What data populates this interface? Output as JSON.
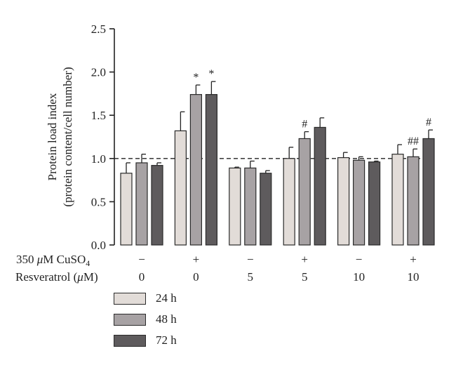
{
  "chart_data": {
    "type": "bar",
    "ylabel_line1": "Protein load index",
    "ylabel_line2": "(protein content/cell number)",
    "ylim": [
      0,
      2.5
    ],
    "yticks": [
      "0.0",
      "0.5",
      "1.0",
      "1.5",
      "2.0",
      "2.5"
    ],
    "reference_line": 1.0,
    "groups": [
      {
        "cuso4": "−",
        "resveratrol": "0"
      },
      {
        "cuso4": "+",
        "resveratrol": "0"
      },
      {
        "cuso4": "−",
        "resveratrol": "5"
      },
      {
        "cuso4": "+",
        "resveratrol": "5"
      },
      {
        "cuso4": "−",
        "resveratrol": "10"
      },
      {
        "cuso4": "+",
        "resveratrol": "10"
      }
    ],
    "row_labels": {
      "cuso4_prefix": "350 ",
      "cuso4_unit": "μ",
      "cuso4_name": "M CuSO",
      "cuso4_sub": "4",
      "resveratrol_prefix": "Resveratrol (",
      "resveratrol_unit": "μ",
      "resveratrol_suffix": "M)"
    },
    "series": [
      {
        "name": "24 h",
        "color": "#e2dcd8",
        "values": [
          0.83,
          1.32,
          0.89,
          1.0,
          1.01,
          1.05
        ],
        "errors": [
          0.12,
          0.22,
          0.01,
          0.13,
          0.06,
          0.11
        ],
        "marks": [
          "",
          "",
          "",
          "",
          "",
          ""
        ]
      },
      {
        "name": "48 h",
        "color": "#a7a2a4",
        "values": [
          0.95,
          1.74,
          0.89,
          1.23,
          0.98,
          1.02
        ],
        "errors": [
          0.1,
          0.11,
          0.08,
          0.08,
          0.04,
          0.09
        ],
        "marks": [
          "",
          "*",
          "",
          "#",
          "",
          "##"
        ]
      },
      {
        "name": "72 h",
        "color": "#5e5b5d",
        "values": [
          0.92,
          1.74,
          0.83,
          1.36,
          0.96,
          1.23
        ],
        "errors": [
          0.03,
          0.15,
          0.03,
          0.11,
          0.01,
          0.1
        ],
        "marks": [
          "",
          "*",
          "",
          "",
          "",
          "#"
        ]
      }
    ]
  }
}
